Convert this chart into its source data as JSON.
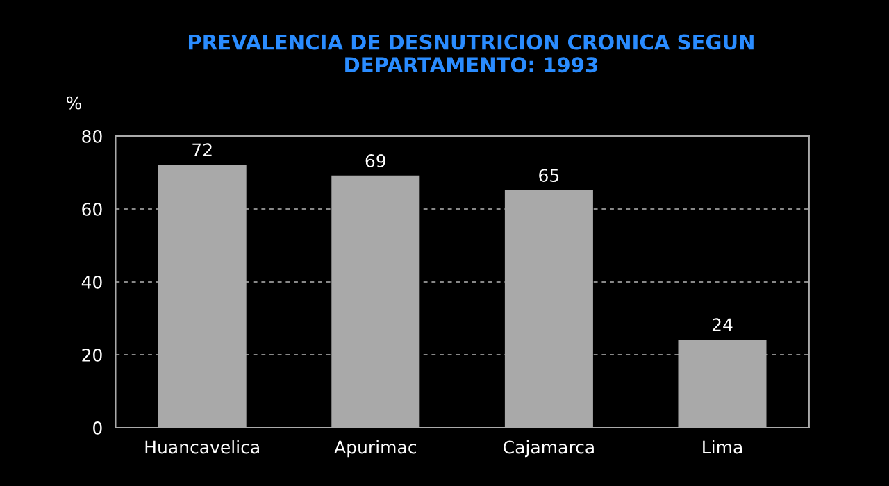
{
  "chart_data": {
    "type": "bar",
    "title": "PREVALENCIA DE DESNUTRICION CRONICA SEGUN\nDEPARTAMENTO: 1993",
    "ylabel": "%",
    "categories": [
      "Huancavelica",
      "Apurimac",
      "Cajamarca",
      "Lima"
    ],
    "values": [
      72,
      69,
      65,
      24
    ],
    "color": "#a9a9a9",
    "ylim": [
      0,
      80
    ],
    "yticks": [
      0,
      20,
      40,
      60,
      80
    ],
    "grid": "y",
    "data_labels": true
  }
}
